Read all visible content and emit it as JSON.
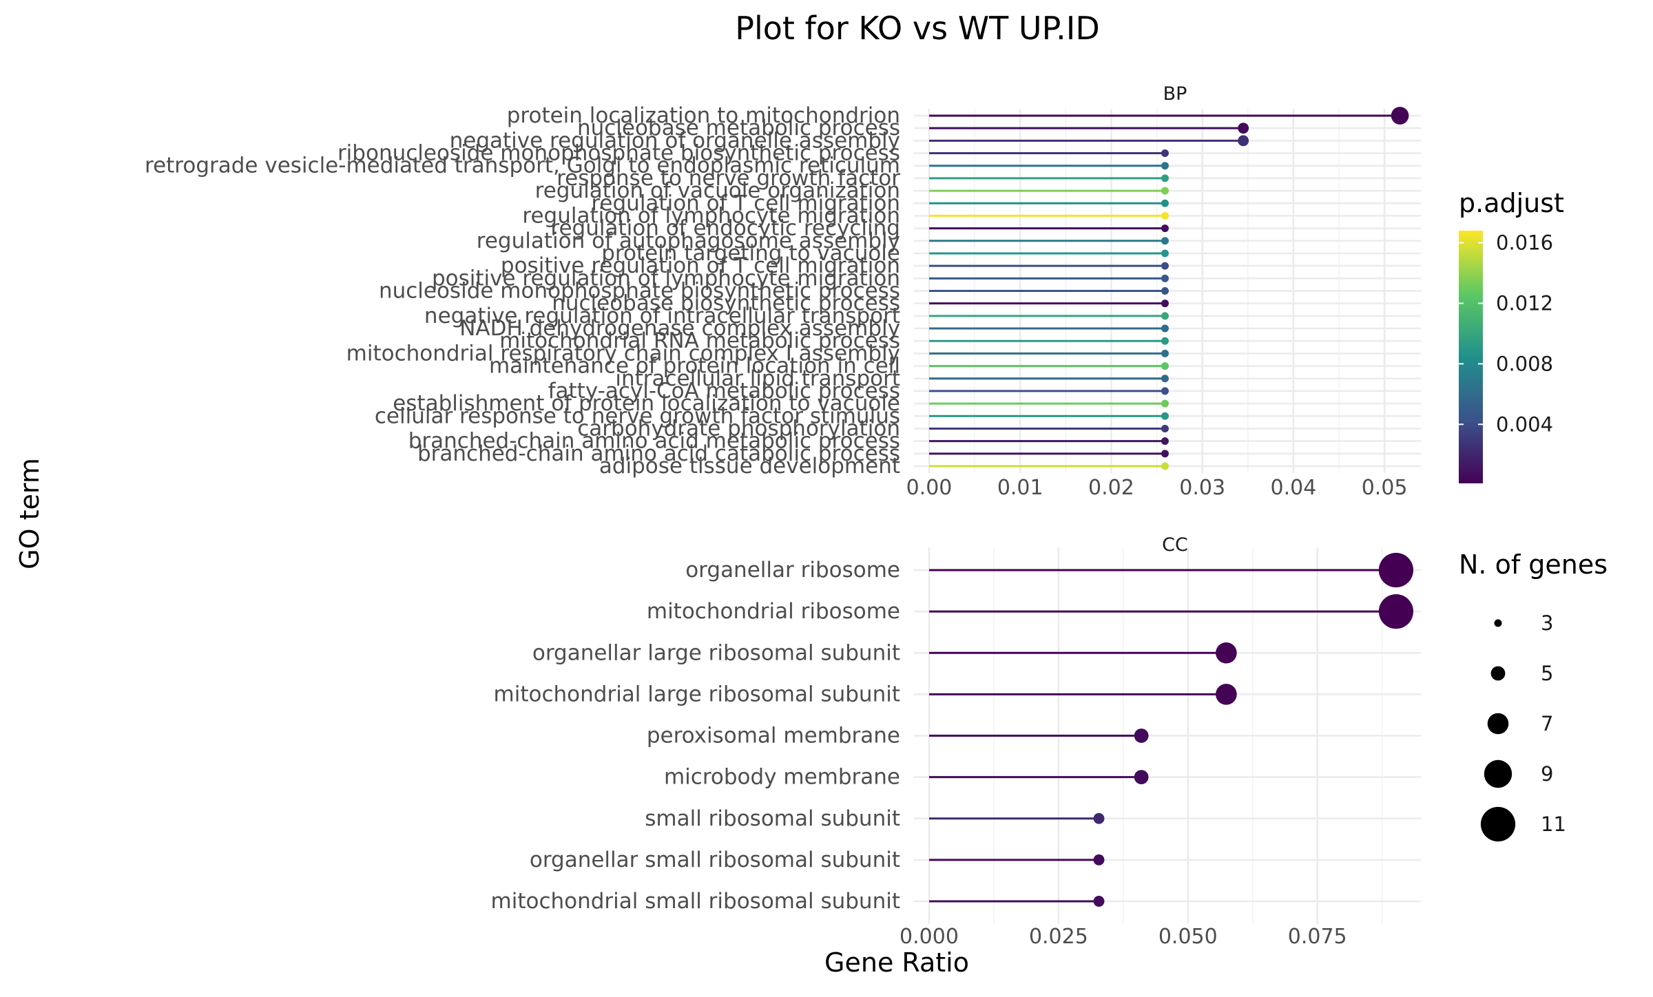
{
  "chart_data": {
    "title": "Plot for KO vs WT UP.ID",
    "type": "lollipop",
    "xlabel": "Gene Ratio",
    "ylabel": "GO term",
    "panels": [
      {
        "name": "BP",
        "xlim": [
          0,
          0.054
        ],
        "xticks": [
          0.0,
          0.01,
          0.02,
          0.03,
          0.04,
          0.05
        ],
        "xtick_labels": [
          "0.00",
          "0.01",
          "0.02",
          "0.03",
          "0.04",
          "0.05"
        ],
        "terms": [
          {
            "label": "protein localization to mitochondrion",
            "gene_ratio": 0.0517,
            "count": 6,
            "p_adjust": 0.0003
          },
          {
            "label": "nucleobase metabolic process",
            "gene_ratio": 0.0345,
            "count": 4,
            "p_adjust": 0.0006
          },
          {
            "label": "negative regulation of organelle assembly",
            "gene_ratio": 0.0345,
            "count": 4,
            "p_adjust": 0.0025
          },
          {
            "label": "ribonucleoside monophosphate biosynthetic process",
            "gene_ratio": 0.0259,
            "count": 3,
            "p_adjust": 0.0028
          },
          {
            "label": "retrograde vesicle-mediated transport, Golgi to endoplasmic reticulum",
            "gene_ratio": 0.0259,
            "count": 3,
            "p_adjust": 0.0065
          },
          {
            "label": "response to nerve growth factor",
            "gene_ratio": 0.0259,
            "count": 3,
            "p_adjust": 0.0095
          },
          {
            "label": "regulation of vacuole organization",
            "gene_ratio": 0.0259,
            "count": 3,
            "p_adjust": 0.0135
          },
          {
            "label": "regulation of T cell migration",
            "gene_ratio": 0.0259,
            "count": 3,
            "p_adjust": 0.0085
          },
          {
            "label": "regulation of lymphocyte migration",
            "gene_ratio": 0.0259,
            "count": 3,
            "p_adjust": 0.0165
          },
          {
            "label": "regulation of endocytic recycling",
            "gene_ratio": 0.0259,
            "count": 3,
            "p_adjust": 0.0008
          },
          {
            "label": "regulation of autophagosome assembly",
            "gene_ratio": 0.0259,
            "count": 3,
            "p_adjust": 0.007
          },
          {
            "label": "protein targeting to vacuole",
            "gene_ratio": 0.0259,
            "count": 3,
            "p_adjust": 0.0088
          },
          {
            "label": "positive regulation of T cell migration",
            "gene_ratio": 0.0259,
            "count": 3,
            "p_adjust": 0.004
          },
          {
            "label": "positive regulation of lymphocyte migration",
            "gene_ratio": 0.0259,
            "count": 3,
            "p_adjust": 0.0048
          },
          {
            "label": "nucleoside monophosphate biosynthetic process",
            "gene_ratio": 0.0259,
            "count": 3,
            "p_adjust": 0.0045
          },
          {
            "label": "nucleobase biosynthetic process",
            "gene_ratio": 0.0259,
            "count": 3,
            "p_adjust": 0.0008
          },
          {
            "label": "negative regulation of intracellular transport",
            "gene_ratio": 0.0259,
            "count": 3,
            "p_adjust": 0.01
          },
          {
            "label": "NADH dehydrogenase complex assembly",
            "gene_ratio": 0.0259,
            "count": 3,
            "p_adjust": 0.006
          },
          {
            "label": "mitochondrial RNA metabolic process",
            "gene_ratio": 0.0259,
            "count": 3,
            "p_adjust": 0.0092
          },
          {
            "label": "mitochondrial respiratory chain complex I assembly",
            "gene_ratio": 0.0259,
            "count": 3,
            "p_adjust": 0.0062
          },
          {
            "label": "maintenance of protein location in cell",
            "gene_ratio": 0.0259,
            "count": 3,
            "p_adjust": 0.0125
          },
          {
            "label": "intracellular lipid transport",
            "gene_ratio": 0.0259,
            "count": 3,
            "p_adjust": 0.0058
          },
          {
            "label": "fatty-acyl-CoA metabolic process",
            "gene_ratio": 0.0259,
            "count": 3,
            "p_adjust": 0.0042
          },
          {
            "label": "establishment of protein localization to vacuole",
            "gene_ratio": 0.0259,
            "count": 3,
            "p_adjust": 0.013
          },
          {
            "label": "cellular response to nerve growth factor stimulus",
            "gene_ratio": 0.0259,
            "count": 3,
            "p_adjust": 0.009
          },
          {
            "label": "carbohydrate phosphorylation",
            "gene_ratio": 0.0259,
            "count": 3,
            "p_adjust": 0.003
          },
          {
            "label": "branched-chain amino acid metabolic process",
            "gene_ratio": 0.0259,
            "count": 3,
            "p_adjust": 0.0012
          },
          {
            "label": "branched-chain amino acid catabolic process",
            "gene_ratio": 0.0259,
            "count": 3,
            "p_adjust": 0.001
          },
          {
            "label": "adipose tissue development",
            "gene_ratio": 0.0259,
            "count": 3,
            "p_adjust": 0.0155
          }
        ]
      },
      {
        "name": "CC",
        "xlim": [
          0,
          0.095
        ],
        "xticks": [
          0.0,
          0.025,
          0.05,
          0.075
        ],
        "xtick_labels": [
          "0.000",
          "0.025",
          "0.050",
          "0.075"
        ],
        "terms": [
          {
            "label": "organellar ribosome",
            "gene_ratio": 0.0902,
            "count": 11,
            "p_adjust": 0.0001
          },
          {
            "label": "mitochondrial ribosome",
            "gene_ratio": 0.0902,
            "count": 11,
            "p_adjust": 0.0001
          },
          {
            "label": "organellar large ribosomal subunit",
            "gene_ratio": 0.0574,
            "count": 7,
            "p_adjust": 0.0002
          },
          {
            "label": "mitochondrial large ribosomal subunit",
            "gene_ratio": 0.0574,
            "count": 7,
            "p_adjust": 0.0002
          },
          {
            "label": "peroxisomal membrane",
            "gene_ratio": 0.041,
            "count": 5,
            "p_adjust": 0.0006
          },
          {
            "label": "microbody membrane",
            "gene_ratio": 0.041,
            "count": 5,
            "p_adjust": 0.0006
          },
          {
            "label": "small ribosomal subunit",
            "gene_ratio": 0.0328,
            "count": 4,
            "p_adjust": 0.0022
          },
          {
            "label": "organellar small ribosomal subunit",
            "gene_ratio": 0.0328,
            "count": 4,
            "p_adjust": 0.0006
          },
          {
            "label": "mitochondrial small ribosomal subunit",
            "gene_ratio": 0.0328,
            "count": 4,
            "p_adjust": 0.0006
          }
        ]
      }
    ],
    "color_legend": {
      "title": "p.adjust",
      "range": [
        0.0001,
        0.0168
      ],
      "ticks": [
        0.004,
        0.008,
        0.012,
        0.016
      ],
      "tick_labels": [
        "0.004",
        "0.008",
        "0.012",
        "0.016"
      ],
      "palette": [
        "#440154",
        "#3B528B",
        "#21908C",
        "#5DC863",
        "#FDE725"
      ]
    },
    "size_legend": {
      "title": "N. of genes",
      "values": [
        3,
        5,
        7,
        9,
        11
      ],
      "labels": [
        "3",
        "5",
        "7",
        "9",
        "11"
      ]
    }
  }
}
